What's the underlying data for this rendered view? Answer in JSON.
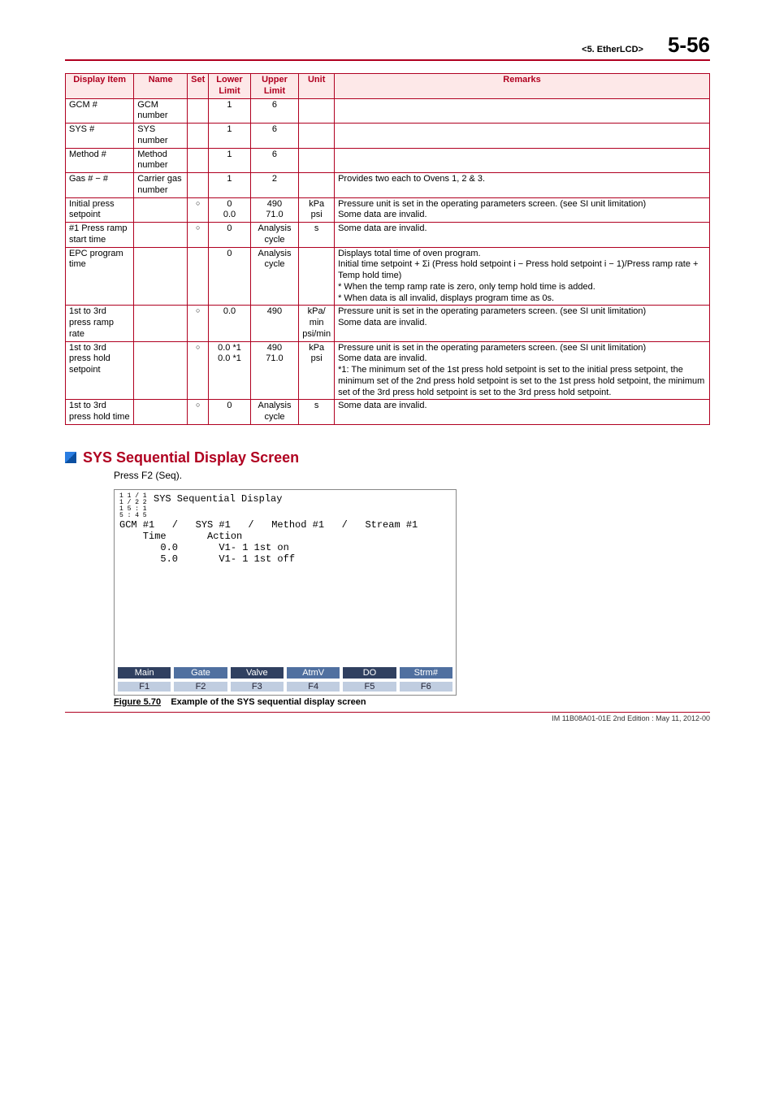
{
  "header": {
    "chapter": "<5.  EtherLCD>",
    "page": "5-56"
  },
  "table": {
    "columns": [
      "Display Item",
      "Name",
      "Set",
      "Lower Limit",
      "Upper Limit",
      "Unit",
      "Remarks"
    ],
    "rows": [
      {
        "item": "GCM #",
        "name": "GCM number",
        "set": "",
        "lower": "1",
        "upper": "6",
        "unit": "",
        "remarks": ""
      },
      {
        "item": "SYS #",
        "name": "SYS number",
        "set": "",
        "lower": "1",
        "upper": "6",
        "unit": "",
        "remarks": ""
      },
      {
        "item": "Method #",
        "name": "Method number",
        "set": "",
        "lower": "1",
        "upper": "6",
        "unit": "",
        "remarks": ""
      },
      {
        "item": "Gas # − #",
        "name": "Carrier gas number",
        "set": "",
        "lower": "1",
        "upper": "2",
        "unit": "",
        "remarks": "Provides two each to Ovens 1, 2 & 3."
      },
      {
        "item": "Initial press setpoint",
        "name": "",
        "set": "○",
        "lower": "0\n0.0",
        "upper": "490\n71.0",
        "unit": "kPa\npsi",
        "remarks": "Pressure unit is set in the operating parameters screen. (see SI unit limitation)\nSome data are invalid."
      },
      {
        "item": "#1 Press ramp start time",
        "name": "",
        "set": "○",
        "lower": "0",
        "upper": "Analysis cycle",
        "unit": "s",
        "remarks": "Some data are invalid."
      },
      {
        "item": "EPC program time",
        "name": "",
        "set": "",
        "lower": "0",
        "upper": "Analysis cycle",
        "unit": "",
        "remarks": "Displays total time of oven program.\nInitial time setpoint + Σi (Press hold setpoint i − Press hold setpoint i − 1)/Press ramp rate + Temp hold time)\n * When the temp ramp rate is zero, only temp hold time is added.\n* When data is all invalid, displays program time as 0s."
      },
      {
        "item": "1st to 3rd press ramp rate",
        "name": "",
        "set": "○",
        "lower": "0.0",
        "upper": "490",
        "unit": "kPa/\nmin\npsi/min",
        "remarks": "Pressure unit is set in the operating parameters screen. (see SI unit limitation)\nSome data are invalid."
      },
      {
        "item": "1st to 3rd press hold setpoint",
        "name": "",
        "set": "○",
        "lower": "0.0  *1\n0.0  *1",
        "upper": "490\n71.0",
        "unit": "kPa\npsi",
        "remarks": "Pressure unit is set in the operating parameters screen. (see SI unit limitation)\nSome data are invalid.\n *1: The minimum set of the 1st press hold setpoint is set to the initial press setpoint, the minimum set of the 2nd press hold setpoint is set to the 1st press hold setpoint, the minimum set of the 3rd press hold setpoint is set to the 3rd press hold setpoint."
      },
      {
        "item": "1st to 3rd press hold time",
        "name": "",
        "set": "○",
        "lower": "0",
        "upper": "Analysis cycle",
        "unit": "s",
        "remarks": "Some data are invalid."
      }
    ]
  },
  "section": {
    "title": "SYS Sequential Display Screen",
    "body": "Press F2 (Seq)."
  },
  "screenshot": {
    "clock_l1": "1 1 / 1 1 / 2 2",
    "clock_l2": "1 5 : 1 5 : 4 5",
    "title": "SYS Sequential Display",
    "breadcrumb": "GCM #1   /   SYS #1   /   Method #1   /   Stream #1",
    "col_header": "    Time       Action",
    "row1": "       0.0       V1- 1 1st on",
    "row2": "       5.0       V1- 1 1st off",
    "tabs": [
      "Main",
      "Gate",
      "Valve",
      "AtmV",
      "DO",
      "Strm#"
    ],
    "fns": [
      "F1",
      "F2",
      "F3",
      "F4",
      "F5",
      "F6"
    ]
  },
  "figure": {
    "label": "Figure 5.70",
    "caption": "Example of the SYS sequential display screen"
  },
  "footer": {
    "text": "IM 11B08A01-01E    2nd Edition : May 11, 2012-00"
  }
}
